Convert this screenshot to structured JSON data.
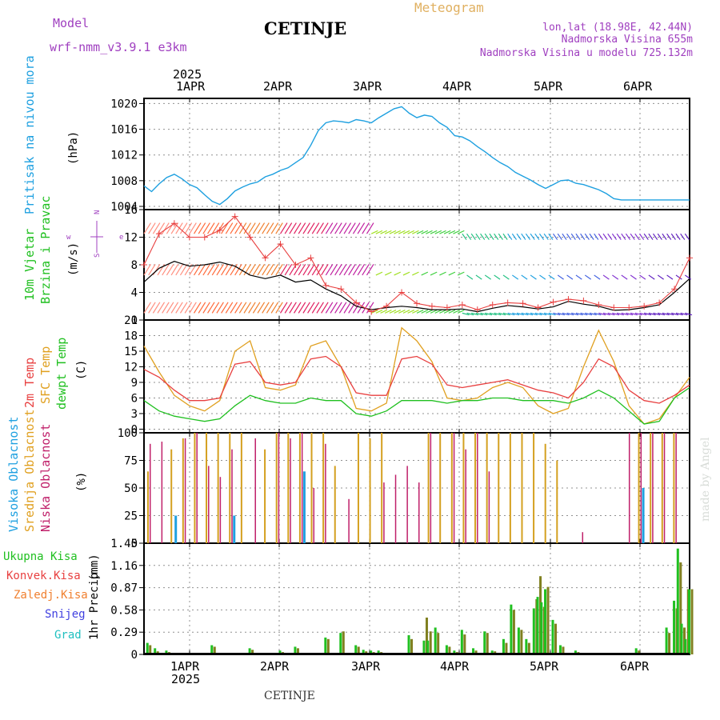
{
  "header": {
    "model_label": "Model",
    "model_name": "wrf-nmm_v3.9.1 e3km",
    "city": "CETINJE",
    "meteogram": "Meteogram",
    "lonlat": "lon,lat (18.98E, 42.44N)",
    "altitude": "Nadmorska Visina 655m",
    "model_altitude": "Nadmorska Visina u modelu 725.132m",
    "watermark": "made by Angel",
    "footer_city": "CETINJE"
  },
  "time_axis": {
    "year": "2025",
    "days": [
      "1APR",
      "2APR",
      "3APR",
      "4APR",
      "5APR",
      "6APR"
    ]
  },
  "colors": {
    "pressure": "#1ea0e0",
    "temp2m": "#e84040",
    "sfc": "#e0a020",
    "dewpt": "#20c020",
    "wind": "#000000",
    "low_cloud": "#c0206a",
    "mid_cloud": "#d4a020",
    "high_cloud": "#1ea0e0",
    "total_precip": "#20c020",
    "conv_precip": "#e84040",
    "strat_precip": "#f08030",
    "snow": "#4040e0",
    "hail": "#20c0c0",
    "conv_green_brown": "#808020"
  },
  "panels": {
    "pressure": {
      "label": "Pritisak na nivou mora",
      "unit": "(hPa)"
    },
    "wind": {
      "label1": "10m Vjetar",
      "label2": "Brzina i Pravac",
      "unit": "(m/s)",
      "compass_w": "w",
      "compass_e": "e",
      "compass_n": "N",
      "compass_s": "S"
    },
    "temp": {
      "label1": "2m Temp",
      "label2": "SFC Temp",
      "label3": "dewpt Temp",
      "unit": "(C)"
    },
    "cloud": {
      "label1": "Visoka Oblacnost",
      "label2": "Srednja Oblacnost",
      "label3": "Niska Oblacnost",
      "unit": "(%)"
    },
    "precip": {
      "label": "1hr Precip",
      "unit": "(mm)",
      "legend": [
        "Ukupna Kisa",
        "Konvek.Kisa",
        "Zaledj.Kisa",
        "Snijeg",
        "Grad"
      ]
    }
  },
  "chart_data": [
    {
      "type": "line",
      "title": "Pritisak na nivou mora",
      "ylabel": "(hPa)",
      "ylim": [
        1003.5,
        1020.8
      ],
      "yticks": [
        "1004",
        "1008",
        "1012",
        "1016",
        "1020"
      ],
      "x_hours": [
        0,
        2,
        4,
        6,
        8,
        10,
        12,
        14,
        16,
        18,
        20,
        22,
        24,
        26,
        28,
        30,
        32,
        34,
        36,
        38,
        40,
        42,
        44,
        46,
        48,
        50,
        52,
        54,
        56,
        58,
        60,
        62,
        64,
        66,
        68,
        70,
        72,
        74,
        76,
        78,
        80,
        82,
        84,
        86,
        88,
        90,
        92,
        94,
        96,
        98,
        100,
        102,
        104,
        106,
        108,
        110,
        112,
        114,
        116,
        118,
        120,
        122,
        124,
        126,
        128,
        130,
        132,
        134,
        136,
        138,
        140,
        142,
        144
      ],
      "series": [
        {
          "name": "SLP",
          "values": [
            1007.2,
            1006.3,
            1007.5,
            1008.5,
            1009.0,
            1008.3,
            1007.4,
            1006.9,
            1005.8,
            1004.8,
            1004.3,
            1005.2,
            1006.4,
            1007.0,
            1007.5,
            1007.8,
            1008.6,
            1009.0,
            1009.6,
            1010.0,
            1010.8,
            1011.6,
            1013.5,
            1015.8,
            1017.0,
            1017.3,
            1017.2,
            1017.0,
            1017.5,
            1017.3,
            1017.0,
            1017.8,
            1018.5,
            1019.2,
            1019.5,
            1018.5,
            1017.8,
            1018.2,
            1018.0,
            1017.0,
            1016.3,
            1015.0,
            1014.8,
            1014.2,
            1013.3,
            1012.5,
            1011.6,
            1010.8,
            1010.2,
            1009.3,
            1008.7,
            1008.1,
            1007.4,
            1006.8,
            1007.4,
            1008.0,
            1008.1,
            1007.6,
            1007.4,
            1007.0,
            1006.6,
            1006.0,
            1005.2,
            1005.0,
            1005.0,
            1005.0,
            1005.0,
            1005.0,
            1005.0,
            1005.0,
            1005.0,
            1005.0,
            1005.0
          ]
        }
      ]
    },
    {
      "type": "line",
      "title": "10m Vjetar Brzina i Pravac",
      "ylabel": "(m/s)",
      "ylim": [
        0,
        16
      ],
      "yticks": [
        "0",
        "4",
        "8",
        "12",
        "16"
      ],
      "x_hours": [
        0,
        4,
        8,
        12,
        16,
        20,
        24,
        28,
        32,
        36,
        40,
        44,
        48,
        52,
        56,
        60,
        64,
        68,
        72,
        76,
        80,
        84,
        88,
        92,
        96,
        100,
        104,
        108,
        112,
        116,
        120,
        124,
        128,
        132,
        136,
        140,
        144
      ],
      "series": [
        {
          "name": "mean speed",
          "values": [
            5.5,
            7.5,
            8.5,
            7.8,
            8.0,
            8.4,
            7.8,
            6.5,
            6.0,
            6.5,
            5.5,
            5.8,
            4.5,
            3.5,
            2.0,
            1.5,
            1.8,
            2.0,
            1.8,
            1.5,
            1.5,
            1.6,
            1.2,
            1.7,
            2.1,
            1.9,
            1.6,
            1.9,
            2.7,
            2.3,
            2.0,
            1.4,
            1.5,
            1.8,
            2.2,
            4.0,
            6.0
          ]
        },
        {
          "name": "gust",
          "values": [
            8.0,
            12.5,
            14.0,
            12.0,
            12.0,
            13.0,
            15.0,
            12.0,
            9.0,
            11.0,
            8.0,
            9.0,
            5.0,
            4.5,
            2.5,
            1.2,
            2.0,
            4.0,
            2.4,
            2.0,
            1.8,
            2.2,
            1.5,
            2.2,
            2.5,
            2.4,
            1.8,
            2.6,
            3.0,
            2.8,
            2.2,
            1.8,
            1.8,
            2.0,
            2.5,
            4.5,
            9.0
          ]
        }
      ]
    },
    {
      "type": "line",
      "title": "2m Temp / SFC Temp / dewpt Temp",
      "ylabel": "(C)",
      "ylim": [
        -0.7,
        21
      ],
      "yticks": [
        "0",
        "3",
        "6",
        "9",
        "12",
        "15",
        "18",
        "21"
      ],
      "x_hours": [
        0,
        4,
        8,
        12,
        16,
        20,
        24,
        28,
        32,
        36,
        40,
        44,
        48,
        52,
        56,
        60,
        64,
        68,
        72,
        76,
        80,
        84,
        88,
        92,
        96,
        100,
        104,
        108,
        112,
        116,
        120,
        124,
        128,
        132,
        136,
        140,
        144
      ],
      "series": [
        {
          "name": "2m Temp",
          "values": [
            11.5,
            10.0,
            7.5,
            5.5,
            5.5,
            6.0,
            12.5,
            13.0,
            9.0,
            8.5,
            9.0,
            13.5,
            14.0,
            12.0,
            7.0,
            6.5,
            6.5,
            13.5,
            14.0,
            12.5,
            8.5,
            8.0,
            8.5,
            9.0,
            9.5,
            8.5,
            7.5,
            7.0,
            6.0,
            9.0,
            13.5,
            12.0,
            7.5,
            5.5,
            5.0,
            6.5,
            8.5
          ]
        },
        {
          "name": "SFC Temp",
          "values": [
            16.0,
            11.0,
            6.5,
            4.5,
            3.5,
            5.5,
            15.0,
            17.0,
            8.0,
            7.5,
            8.5,
            16.0,
            17.0,
            12.0,
            4.0,
            3.5,
            5.0,
            19.5,
            17.0,
            13.0,
            6.0,
            5.5,
            6.0,
            8.0,
            9.0,
            8.0,
            4.5,
            3.0,
            4.0,
            12.0,
            19.0,
            13.0,
            4.5,
            1.0,
            2.0,
            6.0,
            10.0
          ]
        },
        {
          "name": "dewpt Temp",
          "values": [
            5.5,
            3.5,
            2.5,
            2.0,
            1.5,
            2.0,
            4.5,
            6.5,
            5.5,
            5.0,
            5.0,
            6.0,
            5.5,
            5.5,
            3.0,
            2.5,
            3.5,
            5.5,
            5.5,
            5.5,
            5.0,
            5.5,
            5.5,
            6.0,
            6.0,
            5.5,
            5.5,
            5.5,
            5.0,
            6.0,
            7.5,
            6.0,
            3.5,
            1.0,
            1.5,
            6.0,
            8.0
          ]
        }
      ]
    },
    {
      "type": "bar",
      "title": "Visoka / Srednja / Niska Oblacnost",
      "ylabel": "(%)",
      "ylim": [
        0,
        100
      ],
      "yticks": [
        "0",
        "25",
        "50",
        "75",
        "100"
      ],
      "note": "approximate hourly cloud cover bars",
      "series": [
        {
          "name": "Srednja Oblacnost",
          "values": [
            65,
            0,
            85,
            95,
            100,
            100,
            100,
            100,
            100,
            0,
            85,
            100,
            100,
            100,
            100,
            100,
            70,
            0,
            100,
            95,
            100,
            0,
            0,
            0,
            100,
            100,
            100,
            100,
            100,
            100,
            100,
            100,
            100,
            100,
            90,
            75,
            0,
            0,
            0,
            0,
            0,
            0,
            100,
            100,
            100,
            100
          ]
        },
        {
          "name": "Niska Oblacnost",
          "values": [
            90,
            92,
            0,
            95,
            100,
            70,
            60,
            85,
            0,
            95,
            0,
            100,
            95,
            100,
            50,
            90,
            0,
            40,
            0,
            0,
            55,
            62,
            70,
            55,
            100,
            0,
            100,
            85,
            100,
            65,
            0,
            0,
            0,
            0,
            0,
            0,
            0,
            10,
            0,
            0,
            0,
            100,
            100,
            100,
            100,
            100
          ]
        },
        {
          "name": "Visoka Oblacnost",
          "values": [
            0,
            0,
            25,
            0,
            0,
            0,
            0,
            25,
            0,
            0,
            0,
            0,
            0,
            65,
            0,
            0,
            0,
            0,
            0,
            0,
            0,
            0,
            0,
            0,
            0,
            0,
            0,
            0,
            0,
            0,
            0,
            0,
            0,
            0,
            0,
            0,
            0,
            0,
            0,
            0,
            0,
            0,
            50,
            0,
            0,
            0
          ]
        }
      ]
    },
    {
      "type": "bar",
      "title": "1hr Precip",
      "ylabel": "(mm)",
      "ylim": [
        0,
        1.45
      ],
      "yticks": [
        "0",
        "0.29",
        "0.58",
        "0.87",
        "1.16",
        "1.45"
      ],
      "x_hours": [
        1,
        3,
        6,
        18,
        28,
        36,
        40,
        48,
        52,
        56,
        58,
        60,
        62,
        70,
        74,
        75,
        77,
        80,
        82,
        84,
        87,
        90,
        92,
        95,
        97,
        99,
        101,
        103,
        104,
        105,
        106,
        108,
        110,
        114,
        130,
        138,
        140,
        141,
        142,
        143,
        144
      ],
      "series": [
        {
          "name": "Ukupna Kisa",
          "values": [
            0.15,
            0.08,
            0.05,
            0.12,
            0.08,
            0.05,
            0.1,
            0.22,
            0.28,
            0.12,
            0.06,
            0.05,
            0.05,
            0.25,
            0.18,
            0.18,
            0.35,
            0.12,
            0.05,
            0.32,
            0.08,
            0.3,
            0.05,
            0.2,
            0.65,
            0.35,
            0.2,
            0.6,
            0.75,
            0.68,
            0.85,
            0.45,
            0.12,
            0.05,
            0.08,
            0.35,
            0.7,
            1.38,
            0.4,
            0.2,
            0.85
          ]
        },
        {
          "name": "Konvek.Kisa",
          "values": [
            0.12,
            0.04,
            0.03,
            0.1,
            0.06,
            0.03,
            0.08,
            0.2,
            0.3,
            0.1,
            0.04,
            0.03,
            0.03,
            0.2,
            0.48,
            0.3,
            0.28,
            0.1,
            0.03,
            0.26,
            0.05,
            0.28,
            0.04,
            0.15,
            0.58,
            0.32,
            0.15,
            0.72,
            1.02,
            0.62,
            0.88,
            0.4,
            0.1,
            0.03,
            0.05,
            0.28,
            0.6,
            1.2,
            0.35,
            0.85,
            0.85
          ]
        }
      ]
    }
  ]
}
